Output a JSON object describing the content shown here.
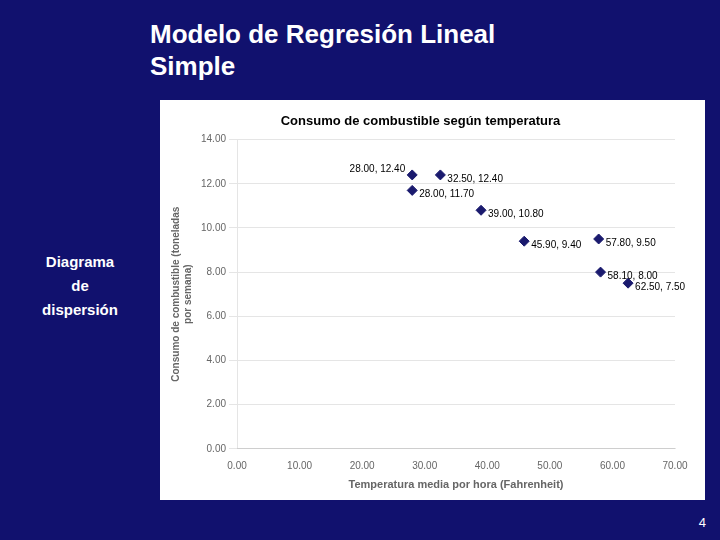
{
  "title": [
    "Modelo de Regresión Lineal",
    "Simple"
  ],
  "annotations": [
    "Diagrama\nde\ndispersión",
    "4"
  ],
  "chart_data": {
    "type": "scatter",
    "title": "Consumo de combustible según temperatura",
    "xlabel": "Temperatura media por hora (Fahrenheit)",
    "ylabel": "Consumo de combustible (toneladas\npor semana)",
    "x": [
      28.0,
      28.0,
      32.5,
      39.0,
      45.9,
      57.8,
      58.1,
      62.5
    ],
    "values": [
      12.4,
      11.7,
      12.4,
      10.8,
      9.4,
      9.5,
      8.0,
      7.5
    ],
    "value_labels": [
      "28.00, 12.40",
      "28.00, 11.70",
      "32.50, 12.40",
      "39.00, 10.80",
      "45.90, 9.40",
      "57.80, 9.50",
      "58.10, 8.00",
      "62.50, 7.50"
    ],
    "data_labels": true,
    "color": "#1a1a6e",
    "marker": "diamond",
    "xlim": [
      0,
      70
    ],
    "ylim": [
      0,
      14
    ],
    "xticks": [
      {
        "value": 0,
        "label": "0.00"
      },
      {
        "value": 10,
        "label": "10.00"
      },
      {
        "value": 20,
        "label": "20.00"
      },
      {
        "value": 30,
        "label": "30.00"
      },
      {
        "value": 40,
        "label": "40.00"
      },
      {
        "value": 50,
        "label": "50.00"
      },
      {
        "value": 60,
        "label": "60.00"
      },
      {
        "value": 70,
        "label": "70.00"
      }
    ],
    "yticks": [
      {
        "value": 0,
        "label": "0.00"
      },
      {
        "value": 2,
        "label": "2.00"
      },
      {
        "value": 4,
        "label": "4.00"
      },
      {
        "value": 6,
        "label": "6.00"
      },
      {
        "value": 8,
        "label": "8.00"
      },
      {
        "value": 10,
        "label": "10.00"
      },
      {
        "value": 12,
        "label": "12.00"
      },
      {
        "value": 14,
        "label": "14.00"
      }
    ],
    "grid": "y"
  }
}
